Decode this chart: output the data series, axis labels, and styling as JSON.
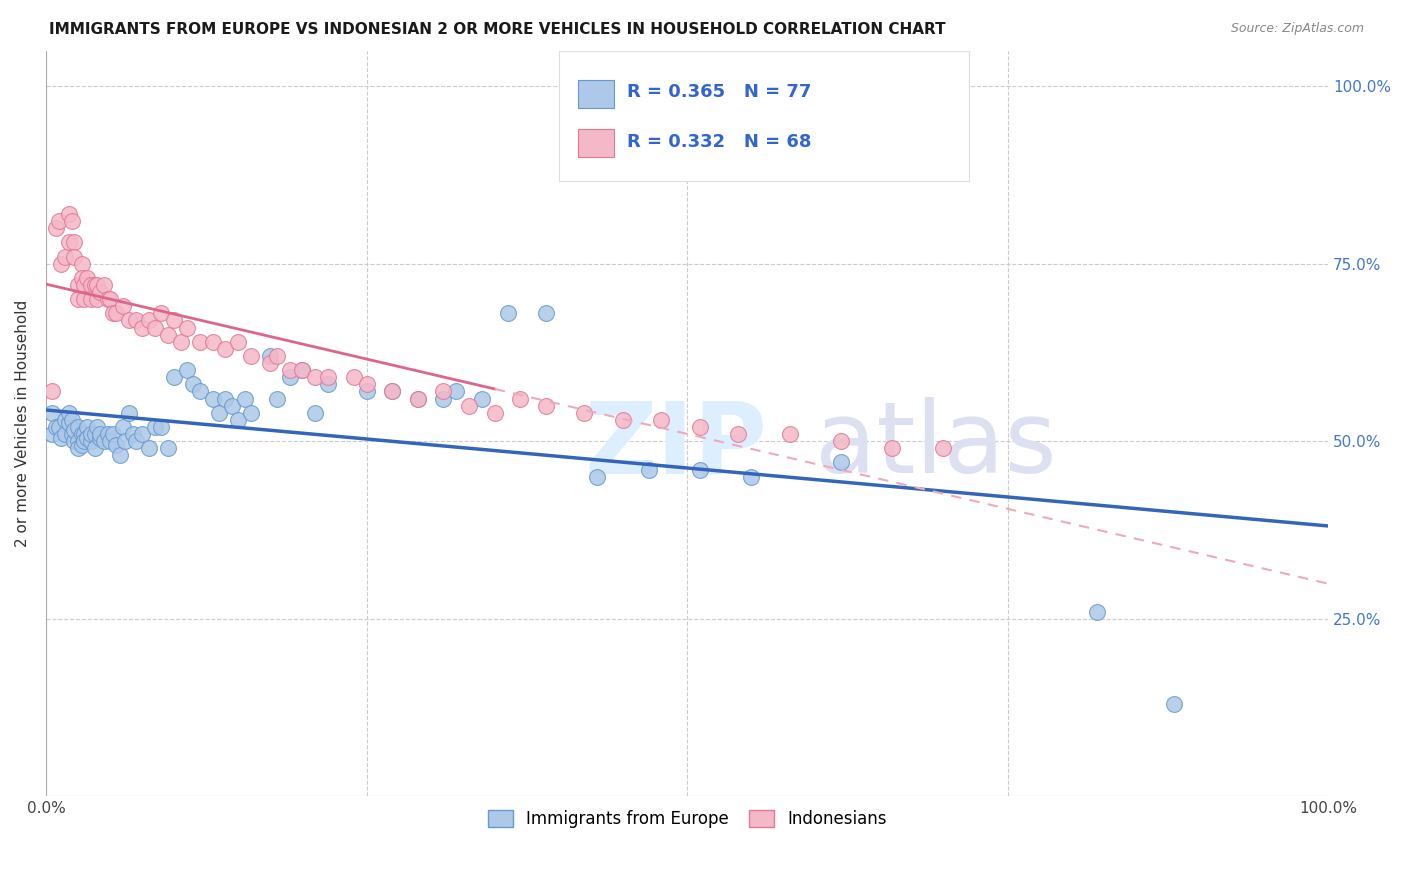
{
  "title": "IMMIGRANTS FROM EUROPE VS INDONESIAN 2 OR MORE VEHICLES IN HOUSEHOLD CORRELATION CHART",
  "source": "Source: ZipAtlas.com",
  "ylabel": "2 or more Vehicles in Household",
  "r_europe": 0.365,
  "n_europe": 77,
  "r_indonesian": 0.332,
  "n_indonesian": 68,
  "europe_color": "#adc8e8",
  "europe_edge": "#6699cc",
  "indonesian_color": "#f5b8c8",
  "indonesian_edge": "#e07898",
  "trend_europe_color": "#3366bb",
  "trend_indonesian_color": "#dd6688",
  "trend_indonesian_dashed_color": "#eeaabb",
  "legend_r_color": "#3366cc",
  "legend_n_color": "#cc3366",
  "watermark_zip_color": "#ddeeff",
  "watermark_atlas_color": "#dde0f0",
  "europe_x": [
    0.005,
    0.005,
    0.008,
    0.01,
    0.012,
    0.015,
    0.015,
    0.018,
    0.018,
    0.02,
    0.02,
    0.022,
    0.022,
    0.025,
    0.025,
    0.025,
    0.028,
    0.028,
    0.03,
    0.03,
    0.032,
    0.032,
    0.035,
    0.035,
    0.038,
    0.038,
    0.04,
    0.042,
    0.042,
    0.045,
    0.048,
    0.05,
    0.052,
    0.055,
    0.058,
    0.06,
    0.062,
    0.065,
    0.068,
    0.07,
    0.075,
    0.08,
    0.085,
    0.09,
    0.095,
    0.1,
    0.11,
    0.115,
    0.12,
    0.13,
    0.135,
    0.14,
    0.145,
    0.15,
    0.155,
    0.16,
    0.175,
    0.18,
    0.19,
    0.2,
    0.21,
    0.22,
    0.25,
    0.27,
    0.29,
    0.31,
    0.32,
    0.34,
    0.36,
    0.39,
    0.43,
    0.47,
    0.51,
    0.55,
    0.62,
    0.82,
    0.88
  ],
  "europe_y": [
    0.54,
    0.51,
    0.52,
    0.52,
    0.505,
    0.51,
    0.53,
    0.525,
    0.54,
    0.53,
    0.51,
    0.5,
    0.515,
    0.52,
    0.5,
    0.49,
    0.51,
    0.495,
    0.51,
    0.5,
    0.52,
    0.505,
    0.5,
    0.51,
    0.51,
    0.49,
    0.52,
    0.505,
    0.51,
    0.5,
    0.51,
    0.5,
    0.51,
    0.495,
    0.48,
    0.52,
    0.5,
    0.54,
    0.51,
    0.5,
    0.51,
    0.49,
    0.52,
    0.52,
    0.49,
    0.59,
    0.6,
    0.58,
    0.57,
    0.56,
    0.54,
    0.56,
    0.55,
    0.53,
    0.56,
    0.54,
    0.62,
    0.56,
    0.59,
    0.6,
    0.54,
    0.58,
    0.57,
    0.57,
    0.56,
    0.56,
    0.57,
    0.56,
    0.68,
    0.68,
    0.45,
    0.46,
    0.46,
    0.45,
    0.47,
    0.26,
    0.13
  ],
  "indonesian_x": [
    0.005,
    0.008,
    0.01,
    0.012,
    0.015,
    0.018,
    0.018,
    0.02,
    0.022,
    0.022,
    0.025,
    0.025,
    0.028,
    0.028,
    0.03,
    0.03,
    0.032,
    0.035,
    0.035,
    0.038,
    0.04,
    0.04,
    0.042,
    0.045,
    0.048,
    0.05,
    0.052,
    0.055,
    0.06,
    0.065,
    0.07,
    0.075,
    0.08,
    0.085,
    0.09,
    0.095,
    0.1,
    0.105,
    0.11,
    0.12,
    0.13,
    0.14,
    0.15,
    0.16,
    0.175,
    0.18,
    0.19,
    0.2,
    0.21,
    0.22,
    0.24,
    0.25,
    0.27,
    0.29,
    0.31,
    0.33,
    0.35,
    0.37,
    0.39,
    0.42,
    0.45,
    0.48,
    0.51,
    0.54,
    0.58,
    0.62,
    0.66,
    0.7
  ],
  "indonesian_y": [
    0.57,
    0.8,
    0.81,
    0.75,
    0.76,
    0.78,
    0.82,
    0.81,
    0.78,
    0.76,
    0.72,
    0.7,
    0.75,
    0.73,
    0.72,
    0.7,
    0.73,
    0.72,
    0.7,
    0.72,
    0.7,
    0.72,
    0.71,
    0.72,
    0.7,
    0.7,
    0.68,
    0.68,
    0.69,
    0.67,
    0.67,
    0.66,
    0.67,
    0.66,
    0.68,
    0.65,
    0.67,
    0.64,
    0.66,
    0.64,
    0.64,
    0.63,
    0.64,
    0.62,
    0.61,
    0.62,
    0.6,
    0.6,
    0.59,
    0.59,
    0.59,
    0.58,
    0.57,
    0.56,
    0.57,
    0.55,
    0.54,
    0.56,
    0.55,
    0.54,
    0.53,
    0.53,
    0.52,
    0.51,
    0.51,
    0.5,
    0.49,
    0.49
  ],
  "xlim": [
    0.0,
    1.0
  ],
  "ylim": [
    0.0,
    1.05
  ],
  "yticks": [
    0.0,
    0.25,
    0.5,
    0.75,
    1.0
  ],
  "ytick_labels": [
    "",
    "25.0%",
    "50.0%",
    "75.0%",
    "100.0%"
  ],
  "xtick_labels_show": [
    "0.0%",
    "100.0%"
  ],
  "xtick_positions_show": [
    0.0,
    1.0
  ]
}
